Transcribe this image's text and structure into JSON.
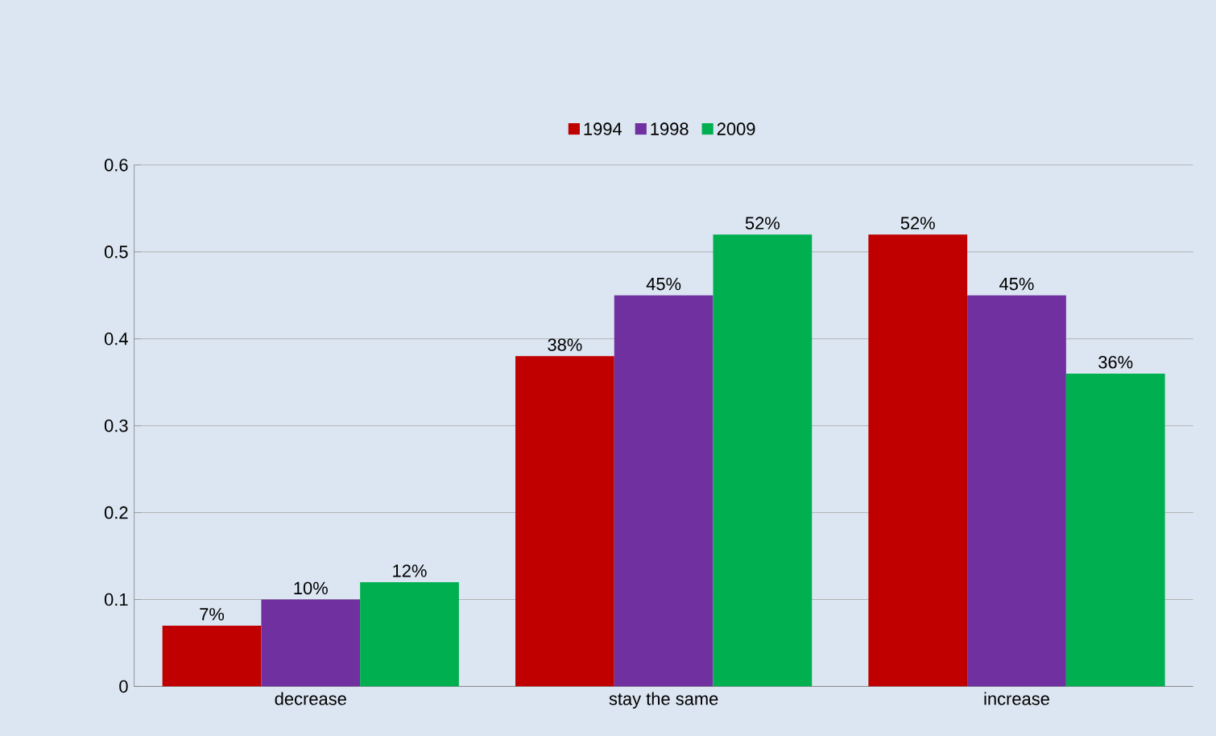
{
  "chart_data": {
    "type": "bar",
    "categories": [
      "decrease",
      "stay the same",
      "increase"
    ],
    "series": [
      {
        "name": "1994",
        "color": "#c00000",
        "values": [
          0.07,
          0.38,
          0.52
        ],
        "value_labels": [
          "7%",
          "38%",
          "52%"
        ]
      },
      {
        "name": "1998",
        "color": "#7030a0",
        "values": [
          0.1,
          0.45,
          0.45
        ],
        "value_labels": [
          "10%",
          "45%",
          "45%"
        ]
      },
      {
        "name": "2009",
        "color": "#00b050",
        "values": [
          0.12,
          0.52,
          0.36
        ],
        "value_labels": [
          "12%",
          "52%",
          "36%"
        ]
      }
    ],
    "ylim": [
      0,
      0.6
    ],
    "yticks": [
      0,
      0.1,
      0.2,
      0.3,
      0.4,
      0.5,
      0.6
    ],
    "grid": "y",
    "legend": "top"
  }
}
